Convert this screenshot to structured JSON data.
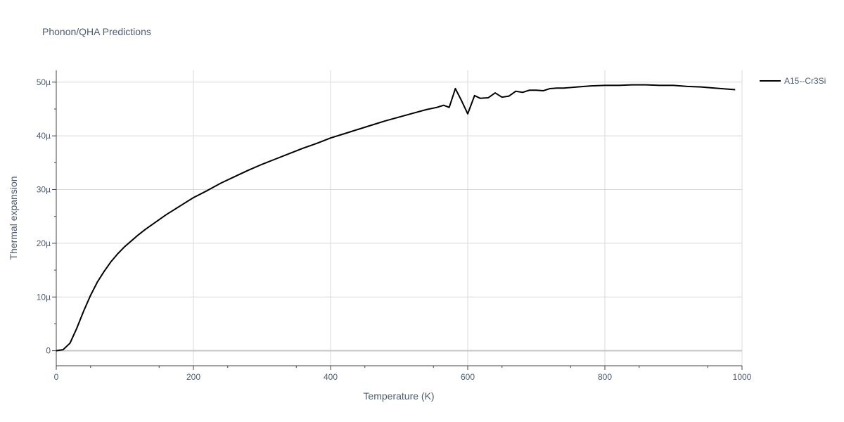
{
  "chart_data": {
    "type": "line",
    "title": "Phonon/QHA Predictions",
    "xlabel": "Temperature (K)",
    "ylabel": "Thermal expansion",
    "xlim": [
      0,
      1000
    ],
    "ylim": [
      -2.8e-06,
      5.22e-05
    ],
    "x_ticks": [
      0,
      200,
      400,
      600,
      800,
      1000
    ],
    "x_tick_labels": [
      "0",
      "200",
      "400",
      "600",
      "800",
      "1000"
    ],
    "y_ticks": [
      0,
      1e-05,
      2e-05,
      3e-05,
      4e-05,
      5e-05
    ],
    "y_tick_labels": [
      "0",
      "10µ",
      "20µ",
      "30µ",
      "40µ",
      "50µ"
    ],
    "grid": true,
    "legend_position": "top-right",
    "series": [
      {
        "name": "A15--Cr3Si",
        "color": "#000000",
        "x": [
          0,
          10,
          20,
          30,
          40,
          50,
          60,
          70,
          80,
          90,
          100,
          110,
          120,
          130,
          140,
          150,
          160,
          170,
          180,
          190,
          200,
          220,
          240,
          260,
          280,
          300,
          320,
          340,
          360,
          380,
          400,
          420,
          440,
          460,
          480,
          500,
          520,
          540,
          555,
          565,
          573,
          582,
          590,
          600,
          610,
          618,
          630,
          640,
          650,
          660,
          670,
          680,
          690,
          700,
          710,
          720,
          730,
          740,
          750,
          760,
          780,
          800,
          820,
          840,
          860,
          880,
          900,
          920,
          940,
          960,
          980,
          990
        ],
        "y": [
          0,
          2e-07,
          1.4e-06,
          4.2e-06,
          7.4e-06,
          1.03e-05,
          1.28e-05,
          1.48e-05,
          1.66e-05,
          1.81e-05,
          1.94e-05,
          2.05e-05,
          2.16e-05,
          2.26e-05,
          2.35e-05,
          2.44e-05,
          2.53e-05,
          2.61e-05,
          2.69e-05,
          2.77e-05,
          2.85e-05,
          2.98e-05,
          3.12e-05,
          3.24e-05,
          3.36e-05,
          3.47e-05,
          3.57e-05,
          3.67e-05,
          3.77e-05,
          3.86e-05,
          3.96e-05,
          4.04e-05,
          4.12e-05,
          4.2e-05,
          4.28e-05,
          4.35e-05,
          4.42e-05,
          4.49e-05,
          4.53e-05,
          4.57e-05,
          4.53e-05,
          4.88e-05,
          4.68e-05,
          4.41e-05,
          4.75e-05,
          4.7e-05,
          4.71e-05,
          4.8e-05,
          4.72e-05,
          4.74e-05,
          4.83e-05,
          4.81e-05,
          4.85e-05,
          4.85e-05,
          4.84e-05,
          4.88e-05,
          4.89e-05,
          4.89e-05,
          4.9e-05,
          4.91e-05,
          4.93e-05,
          4.94e-05,
          4.94e-05,
          4.95e-05,
          4.95e-05,
          4.94e-05,
          4.94e-05,
          4.92e-05,
          4.91e-05,
          4.89e-05,
          4.87e-05,
          4.86e-05
        ]
      }
    ]
  }
}
